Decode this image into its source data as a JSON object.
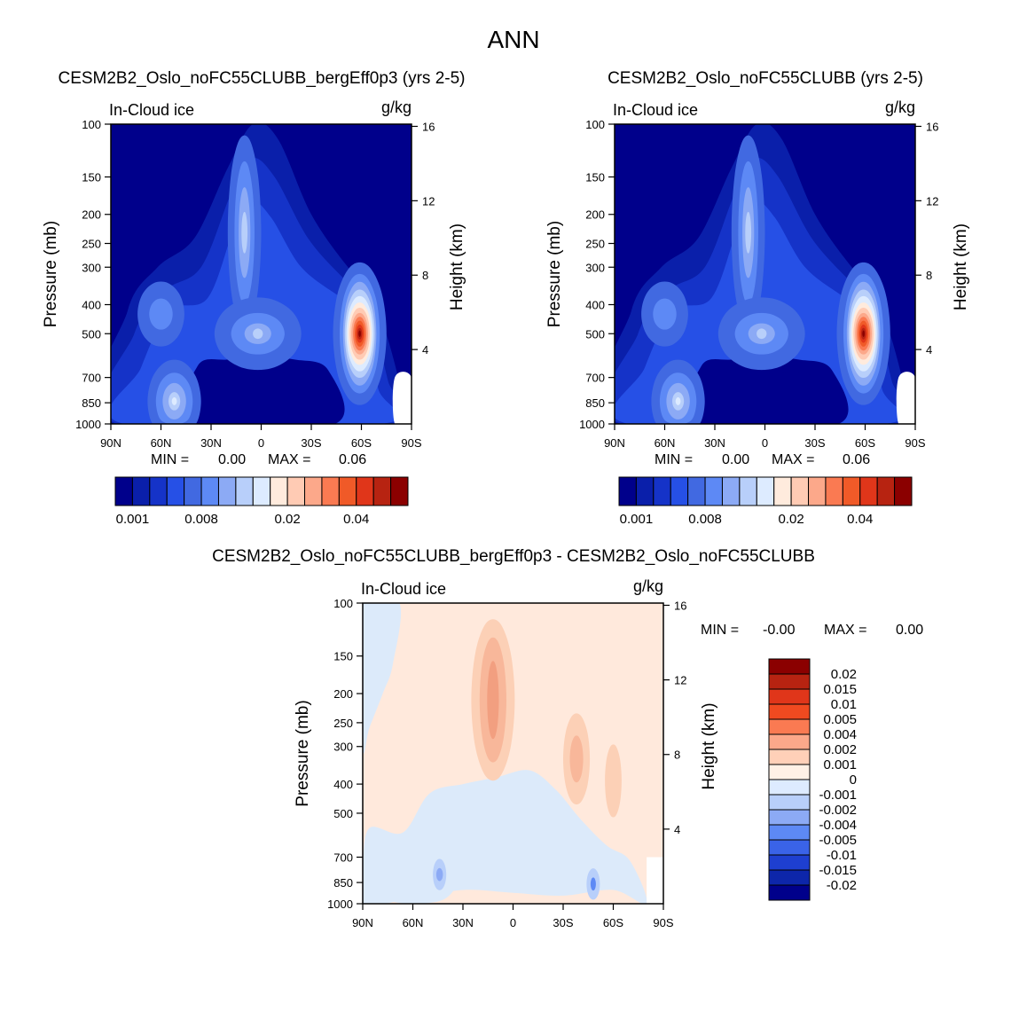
{
  "figure": {
    "suptitle": "ANN"
  },
  "chart_data": [
    {
      "type": "heatmap",
      "title": "CESM2B2_Oslo_noFC55CLUBB_bergEff0p3 (yrs 2-5)",
      "left_label": "In-Cloud ice",
      "units": "g/kg",
      "xlabel": "",
      "ylabel": "Pressure (mb)",
      "y2label": "Height (km)",
      "x_ticks": [
        "90N",
        "60N",
        "30N",
        "0",
        "30S",
        "60S",
        "90S"
      ],
      "x_range": [
        90,
        -90
      ],
      "pressure_ticks": [
        100,
        150,
        200,
        250,
        300,
        400,
        500,
        700,
        850,
        1000
      ],
      "pressure_range": [
        100,
        1000
      ],
      "height_ticks": [
        16,
        12,
        8,
        4
      ],
      "stats": {
        "min_label": "MIN =",
        "min_value": "0.00",
        "max_label": "MAX =",
        "max_value": "0.06"
      },
      "colorbar": {
        "orientation": "horizontal",
        "colors": [
          "#00008B",
          "#0A1FAA",
          "#1533C8",
          "#2650E6",
          "#4169E1",
          "#5D89F5",
          "#8CAAF5",
          "#B8CFFA",
          "#DDEBFF",
          "#FFEBDD",
          "#FFCBB4",
          "#FCA88A",
          "#FA7A52",
          "#F05A28",
          "#E0361A",
          "#B72311",
          "#8B0000"
        ],
        "tick_labels": [
          "0.001",
          "0.008",
          "0.02",
          "0.04"
        ]
      },
      "features": [
        {
          "label": "southern mid-latitude maximum",
          "lat": -59,
          "pressure_mb": 500,
          "value": 0.06
        },
        {
          "label": "tropical upper-level maximum",
          "lat": 8,
          "pressure_mb": 220,
          "value": 0.009
        },
        {
          "label": "northern low-level maximum",
          "lat": 52,
          "pressure_mb": 850,
          "value": 0.01
        }
      ]
    },
    {
      "type": "heatmap",
      "title": "CESM2B2_Oslo_noFC55CLUBB (yrs 2-5)",
      "left_label": "In-Cloud ice",
      "units": "g/kg",
      "xlabel": "",
      "ylabel": "Pressure (mb)",
      "y2label": "Height (km)",
      "x_ticks": [
        "90N",
        "60N",
        "30N",
        "0",
        "30S",
        "60S",
        "90S"
      ],
      "x_range": [
        90,
        -90
      ],
      "pressure_ticks": [
        100,
        150,
        200,
        250,
        300,
        400,
        500,
        700,
        850,
        1000
      ],
      "pressure_range": [
        100,
        1000
      ],
      "height_ticks": [
        16,
        12,
        8,
        4
      ],
      "stats": {
        "min_label": "MIN =",
        "min_value": "0.00",
        "max_label": "MAX =",
        "max_value": "0.06"
      },
      "colorbar": {
        "orientation": "horizontal",
        "colors": [
          "#00008B",
          "#0A1FAA",
          "#1533C8",
          "#2650E6",
          "#4169E1",
          "#5D89F5",
          "#8CAAF5",
          "#B8CFFA",
          "#DDEBFF",
          "#FFEBDD",
          "#FFCBB4",
          "#FCA88A",
          "#FA7A52",
          "#F05A28",
          "#E0361A",
          "#B72311",
          "#8B0000"
        ],
        "tick_labels": [
          "0.001",
          "0.008",
          "0.02",
          "0.04"
        ]
      },
      "features": [
        {
          "label": "southern mid-latitude maximum",
          "lat": -59,
          "pressure_mb": 500,
          "value": 0.06
        },
        {
          "label": "tropical upper-level maximum",
          "lat": 8,
          "pressure_mb": 230,
          "value": 0.008
        },
        {
          "label": "northern low-level maximum",
          "lat": 52,
          "pressure_mb": 850,
          "value": 0.01
        }
      ]
    },
    {
      "type": "heatmap",
      "title": "CESM2B2_Oslo_noFC55CLUBB_bergEff0p3 - CESM2B2_Oslo_noFC55CLUBB",
      "left_label": "In-Cloud ice",
      "units": "g/kg",
      "xlabel": "",
      "ylabel": "Pressure (mb)",
      "y2label": "Height (km)",
      "x_ticks": [
        "90N",
        "60N",
        "30N",
        "0",
        "30S",
        "60S",
        "90S"
      ],
      "x_range": [
        90,
        -90
      ],
      "pressure_ticks": [
        100,
        150,
        200,
        250,
        300,
        400,
        500,
        700,
        850,
        1000
      ],
      "pressure_range": [
        100,
        1000
      ],
      "height_ticks": [
        16,
        12,
        8,
        4
      ],
      "stats": {
        "min_label": "MIN =",
        "min_value": "-0.00",
        "max_label": "MAX =",
        "max_value": "0.00"
      },
      "colorbar": {
        "orientation": "vertical",
        "colors": [
          "#8B0000",
          "#B72311",
          "#E0361A",
          "#F04A20",
          "#FA7A52",
          "#FCA88A",
          "#FFD0B8",
          "#FFF1E6",
          "#DDEBFF",
          "#B8CFFA",
          "#8CAAF5",
          "#5D89F5",
          "#3A63E8",
          "#1E3FD0",
          "#0D26AA",
          "#00008B"
        ],
        "tick_labels": [
          "0.02",
          "0.015",
          "0.01",
          "0.005",
          "0.004",
          "0.002",
          "0.001",
          "0",
          "-0.001",
          "-0.002",
          "-0.004",
          "-0.005",
          "-0.01",
          "-0.015",
          "-0.02"
        ]
      },
      "features": [
        {
          "label": "positive difference, tropical upper troposphere",
          "lat": 12,
          "pressure_mb": 210,
          "value": 0.004
        },
        {
          "label": "positive difference, southern upper troposphere",
          "lat": -38,
          "pressure_mb": 320,
          "value": 0.002
        },
        {
          "label": "negative difference, northern lower troposphere",
          "lat": 44,
          "pressure_mb": 800,
          "value": -0.004
        },
        {
          "label": "negative difference, southern lower troposphere",
          "lat": -48,
          "pressure_mb": 850,
          "value": -0.004
        }
      ]
    }
  ]
}
